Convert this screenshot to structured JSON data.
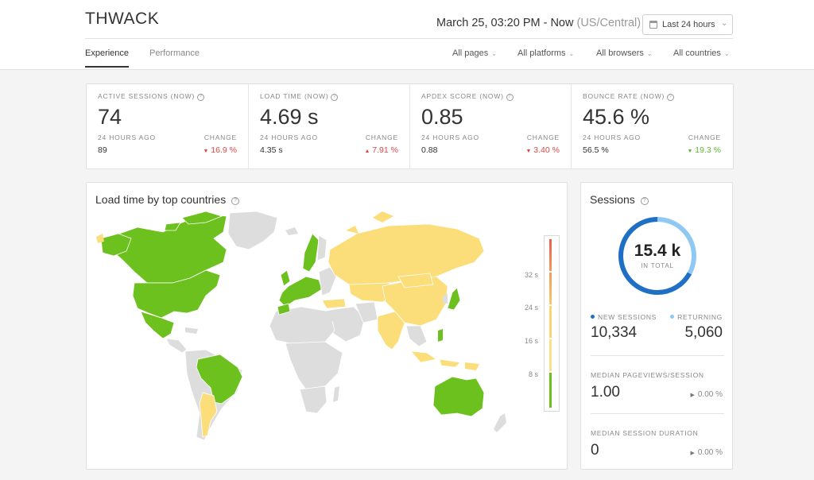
{
  "header": {
    "brand": "THWACK",
    "time_range": "March 25, 03:20 PM - Now",
    "timezone": "(US/Central)",
    "range_select": "Last 24 hours",
    "tabs": [
      {
        "label": "Experience",
        "active": true
      },
      {
        "label": "Performance",
        "active": false
      }
    ],
    "filters": [
      "All pages",
      "All platforms",
      "All browsers",
      "All countries"
    ]
  },
  "kpis": [
    {
      "label": "ACTIVE SESSIONS (NOW)",
      "value": "74",
      "ago_label": "24 HOURS AGO",
      "prev": "89",
      "change_label": "CHANGE",
      "change": "16.9 %",
      "direction": "down",
      "status": "bad"
    },
    {
      "label": "LOAD TIME (NOW)",
      "value": "4.69 s",
      "ago_label": "24 HOURS AGO",
      "prev": "4.35 s",
      "change_label": "CHANGE",
      "change": "7.91 %",
      "direction": "up",
      "status": "bad"
    },
    {
      "label": "APDEX SCORE (NOW)",
      "value": "0.85",
      "ago_label": "24 HOURS AGO",
      "prev": "0.88",
      "change_label": "CHANGE",
      "change": "3.40 %",
      "direction": "down",
      "status": "bad"
    },
    {
      "label": "BOUNCE RATE (NOW)",
      "value": "45.6 %",
      "ago_label": "24 HOURS AGO",
      "prev": "56.5 %",
      "change_label": "CHANGE",
      "change": "19.3 %",
      "direction": "down",
      "status": "good"
    }
  ],
  "map": {
    "title": "Load time by top countries",
    "legend_labels": [
      "32 s",
      "24 s",
      "16 s",
      "8 s"
    ],
    "colors": {
      "fast": "#6cc11f",
      "medium": "#fbdd7a",
      "no_data": "#dddddd"
    }
  },
  "sessions": {
    "title": "Sessions",
    "total": "15.4 k",
    "total_label": "IN TOTAL",
    "new_label": "NEW SESSIONS",
    "new_value": "10,334",
    "returning_label": "RETURNING",
    "returning_value": "5,060",
    "new_fraction": 0.671,
    "colors": {
      "new": "#1f6fc5",
      "returning": "#8ec8f3"
    },
    "pageviews_label": "MEDIAN PAGEVIEWS/SESSION",
    "pageviews_value": "1.00",
    "pageviews_change": "0.00 %",
    "duration_label": "MEDIAN SESSION DURATION",
    "duration_value": "0",
    "duration_change": "0.00 %"
  }
}
